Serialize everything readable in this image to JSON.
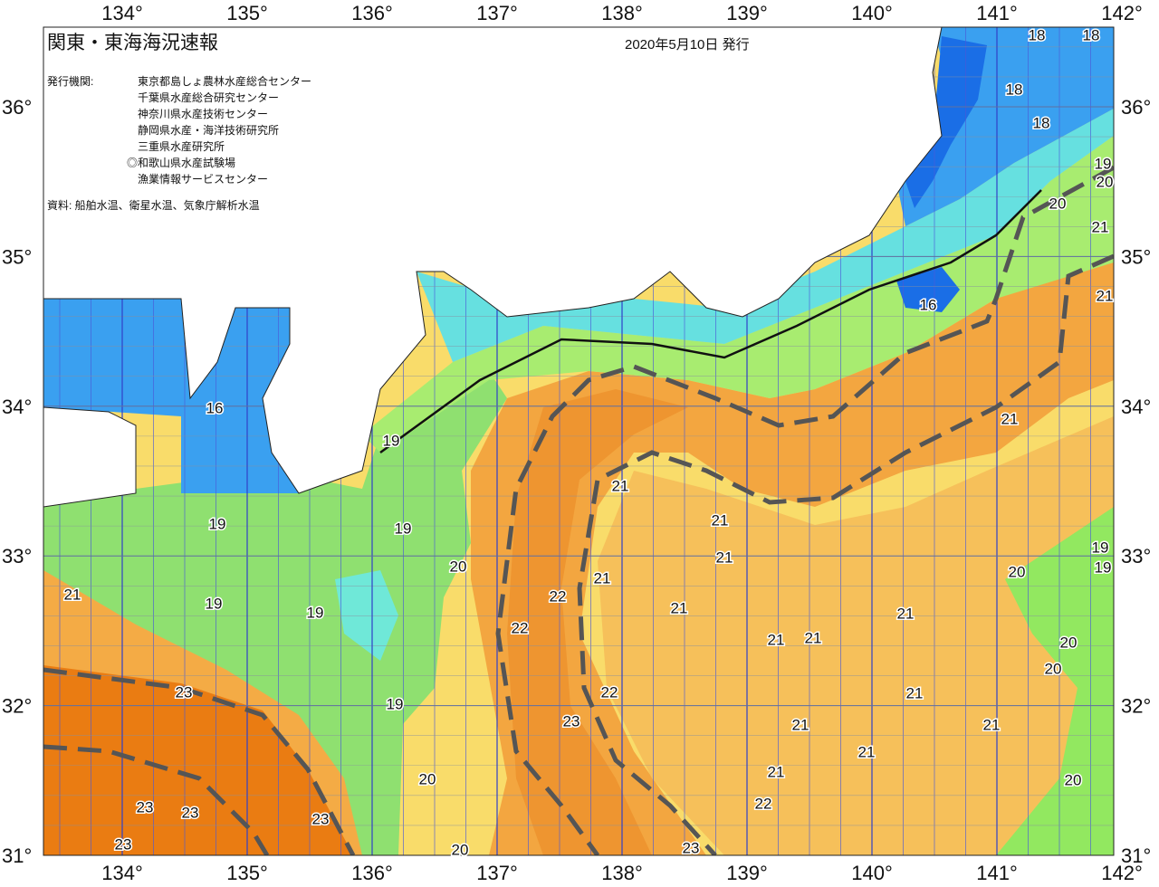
{
  "header": {
    "title": "関東・東海海況速報",
    "date": "2020年5月10日 発行",
    "agencies_label": "発行機関:",
    "agencies": [
      "東京都島しょ農林水産総合センター",
      "千葉県水産総合研究センター",
      "神奈川県水産技術センター",
      "静岡県水産・海洋技術研究所",
      "三重県水産研究所",
      "◎和歌山県水産試験場",
      "漁業情報サービスセンター"
    ],
    "source": "資料: 船舶水温、衛星水温、気象庁解析水温"
  },
  "axes": {
    "longitudes": [
      {
        "value": 134,
        "label": "134°"
      },
      {
        "value": 135,
        "label": "135°"
      },
      {
        "value": 136,
        "label": "136°"
      },
      {
        "value": 137,
        "label": "137°"
      },
      {
        "value": 138,
        "label": "138°"
      },
      {
        "value": 139,
        "label": "139°"
      },
      {
        "value": 140,
        "label": "140°"
      },
      {
        "value": 141,
        "label": "141°"
      },
      {
        "value": 142,
        "label": "142°"
      }
    ],
    "latitudes": [
      {
        "value": 36,
        "label": "36°"
      },
      {
        "value": 35,
        "label": "35°"
      },
      {
        "value": 34,
        "label": "34°"
      },
      {
        "value": 33,
        "label": "33°"
      },
      {
        "value": 32,
        "label": "32°"
      },
      {
        "value": 31,
        "label": "31°"
      }
    ]
  },
  "contour_labels": [
    18,
    18,
    18,
    18,
    19,
    20,
    20,
    21,
    21,
    16,
    16,
    19,
    21,
    21,
    21,
    19,
    19,
    21,
    20,
    19,
    19,
    20,
    21,
    22,
    21,
    19,
    21,
    19,
    21,
    22,
    21,
    21,
    20,
    20,
    23,
    22,
    21,
    19,
    23,
    21,
    21,
    21,
    21,
    20,
    20,
    22,
    23,
    23,
    23,
    23,
    20,
    23
  ]
}
